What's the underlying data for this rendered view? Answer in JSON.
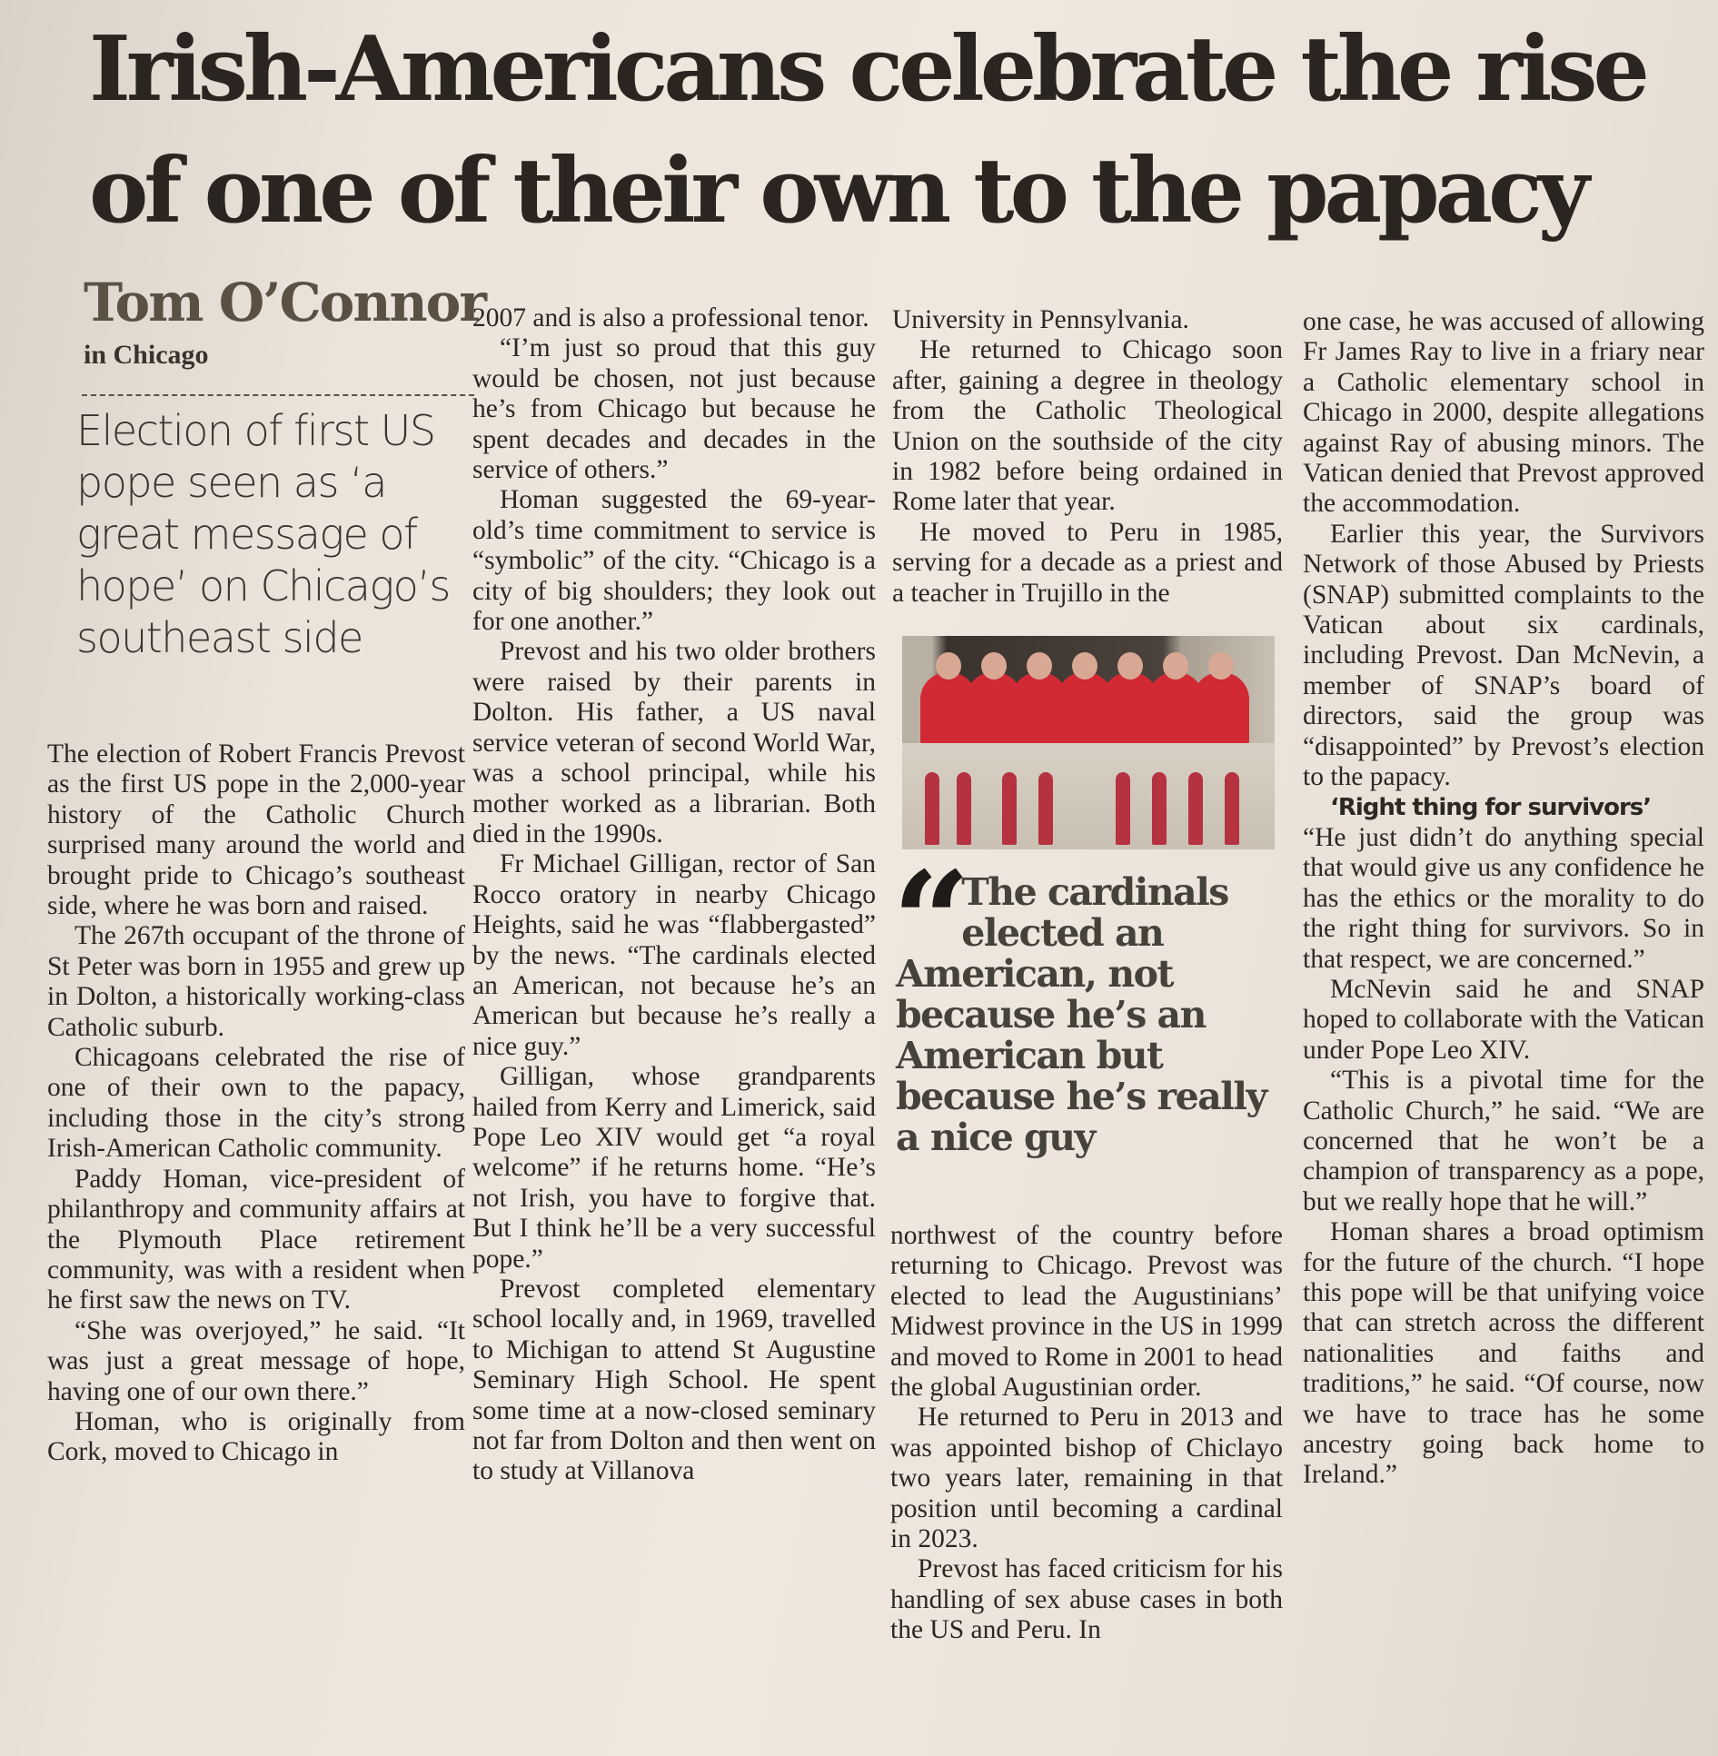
{
  "headline": [
    "Irish-Americans celebrate the rise",
    "of one of their own to the papacy"
  ],
  "byline": {
    "author": "Tom O’Connor",
    "location": "in Chicago"
  },
  "standfirst": "Election of first US pope seen as ‘a great message of hope’ on Chicago’s southeast side",
  "photo": {
    "subject": "cardinals on balcony photo",
    "accent_color": "#d22a34"
  },
  "pull_quote": "The cardinals elected an American, not because he’s an American but because he’s really a nice guy",
  "columns": {
    "col1": [
      "The election of Robert Francis Prevost as the first US pope in the 2,000-year history of the Catholic Church surprised many around the world and brought pride to Chicago’s southeast side, where he was born and raised.",
      "The 267th occupant of the throne of St Peter was born in 1955 and grew up in Dolton, a historically working-class Catholic suburb.",
      "Chicagoans celebrated the rise of one of their own to the papacy, including those in the city’s strong Irish-American Catholic community.",
      "Paddy Homan, vice-president of philanthropy and community affairs at the Plymouth Place retirement community, was with a resident when he first saw the news on TV.",
      "“She was overjoyed,” he said. “It was just a great message of hope, having one of our own there.”",
      "Homan, who is originally from Cork, moved to Chicago in"
    ],
    "col2": [
      "2007 and is also a professional tenor.",
      "“I’m just so proud that this guy would be chosen, not just because he’s from Chicago but because he spent decades and decades in the service of others.”",
      "Homan suggested the 69-year-old’s time commitment to service is “symbolic” of the city. “Chicago is a city of big shoulders; they look out for one another.”",
      "Prevost and his two older brothers were raised by their parents in Dolton. His father, a US naval service veteran of second World War, was a school principal, while his mother worked as a librarian. Both died in the 1990s.",
      "Fr Michael Gilligan, rector of San Rocco oratory in nearby Chicago Heights, said he was “flabbergasted” by the news. “The cardinals elected an American, not because he’s an American but because he’s really a nice guy.”",
      "Gilligan, whose grandparents hailed from Kerry and Limerick, said Pope Leo XIV would get “a royal welcome” if he returns home. “He’s not Irish, you have to forgive that. But I think he’ll be a very successful pope.”",
      "Prevost completed elementary school locally and, in 1969, travelled to Michigan to attend St Augustine Seminary High School. He spent some time at a now-closed seminary not far from Dolton and then went on to study at Villanova"
    ],
    "col3_top": [
      "University in Pennsylvania.",
      "He returned to Chicago soon after, gaining a degree in theology from the Catholic Theological Union on the southside of the city in 1982 before being ordained in Rome later that year.",
      "He moved to Peru in 1985, serving for a decade as a priest and a teacher in Trujillo in the"
    ],
    "col3_bottom": [
      "northwest of the country before returning to Chicago. Prevost was elected to lead the Augustinians’ Midwest province in the US in 1999 and moved to Rome in 2001 to head the global Augustinian order.",
      "He returned to Peru in 2013 and was appointed bishop of Chiclayo two years later, remaining in that position until becoming a cardinal in 2023.",
      "Prevost has faced criticism for his handling of sex abuse cases in both the US and Peru. In"
    ],
    "col4_a": [
      "one case, he was accused of allowing Fr James Ray to live in a friary near a Catholic elementary school in Chicago in 2000, despite allegations against Ray of abusing minors. The Vatican denied that Prevost approved the accommodation.",
      "Earlier this year, the Survivors Network of those Abused by Priests (SNAP) submitted complaints to the Vatican about six cardinals, including Prevost. Dan McNevin, a member of SNAP’s board of directors, said the group was “disappointed” by Prevost’s election to the papacy."
    ],
    "col4_subhead": "‘Right thing for survivors’",
    "col4_b": [
      "“He just didn’t do anything special that would give us any confidence he has the ethics or the morality to do the right thing for survivors. So in that respect, we are concerned.”",
      "McNevin said he and SNAP hoped to collaborate with the Vatican under Pope Leo XIV.",
      "“This is a pivotal time for the Catholic Church,” he said. “We are concerned that he won’t be a champion of transparency as a pope, but we really hope that he will.”",
      "Homan shares a broad optimism for the future of the church. “I hope this pope will be that unifying voice that can stretch across the different nationalities and faiths and traditions,” he said. “Of course, now we have to trace has he some ancestry going back home to Ireland.”"
    ]
  }
}
